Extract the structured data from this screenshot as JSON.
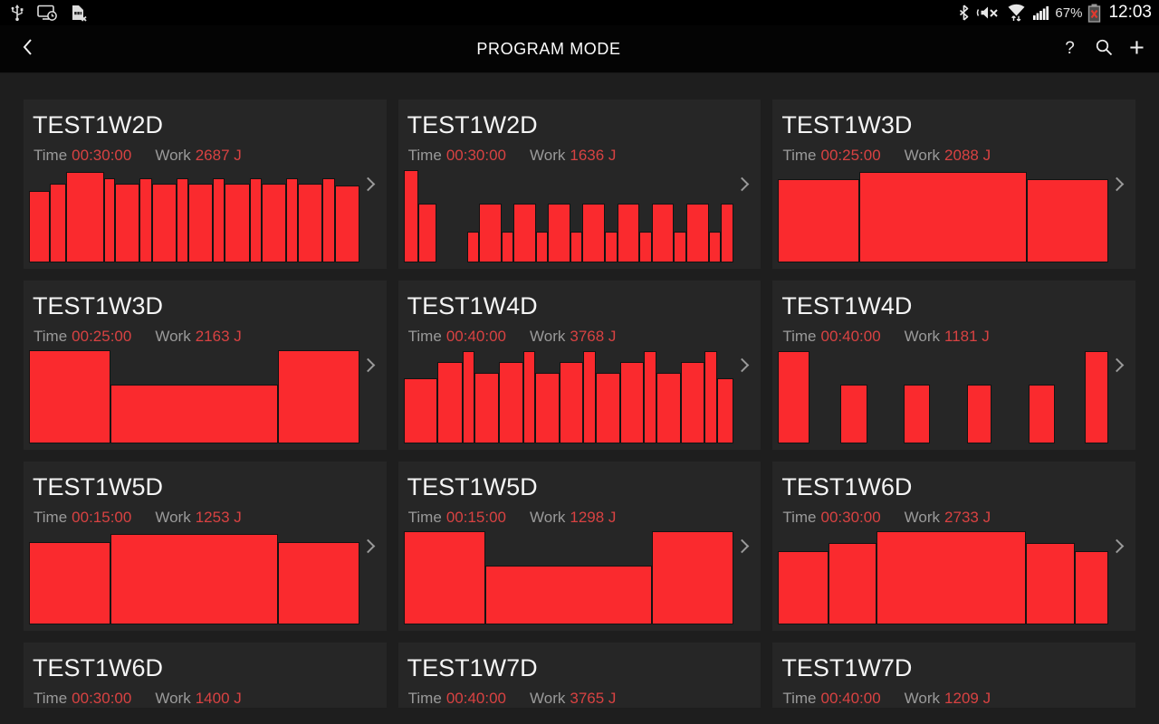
{
  "status_bar": {
    "left_icons": [
      "usb-icon",
      "smart-stay-icon",
      "sim-missing-icon"
    ],
    "right_icons": [
      "bluetooth-icon",
      "vibrate-mute-icon",
      "wifi-icon",
      "signal-strength-icon",
      "battery-missing-icon"
    ],
    "battery_percent": "67%",
    "time": "12:03"
  },
  "app_bar": {
    "title": "PROGRAM MODE",
    "back_icon": "back-chevron-icon",
    "help_label": "?",
    "search_icon": "search-icon",
    "add_label": "+"
  },
  "labels": {
    "time": "Time",
    "work": "Work"
  },
  "colors": {
    "page_bg": "#1e1e1e",
    "card_bg": "#262626",
    "bar_red": "#fa2a2e",
    "value_red": "#d84242",
    "label_gray": "#9a9a9a"
  },
  "programs": [
    {
      "name": "TEST1W2D",
      "time": "00:30:00",
      "work": "2687 J",
      "clipped": false,
      "bars": [
        [
          1.6,
          0.77
        ],
        [
          1.2,
          0.84
        ],
        [
          3.0,
          0.97
        ],
        [
          0.8,
          0.9
        ],
        [
          1.9,
          0.84
        ],
        [
          0.85,
          0.9
        ],
        [
          1.9,
          0.84
        ],
        [
          0.85,
          0.9
        ],
        [
          1.9,
          0.84
        ],
        [
          0.85,
          0.9
        ],
        [
          1.9,
          0.84
        ],
        [
          0.85,
          0.9
        ],
        [
          1.9,
          0.84
        ],
        [
          0.85,
          0.9
        ],
        [
          1.9,
          0.84
        ],
        [
          0.85,
          0.9
        ],
        [
          1.9,
          0.83
        ]
      ]
    },
    {
      "name": "TEST1W2D",
      "time": "00:30:00",
      "work": "1636 J",
      "clipped": false,
      "bars": [
        [
          1.3,
          0.99
        ],
        [
          1.5,
          0.63
        ],
        [
          3,
          0
        ],
        [
          1,
          0.33
        ],
        [
          2,
          0.63
        ],
        [
          1,
          0.33
        ],
        [
          2,
          0.63
        ],
        [
          1,
          0.33
        ],
        [
          2,
          0.63
        ],
        [
          1,
          0.33
        ],
        [
          2,
          0.63
        ],
        [
          1,
          0.33
        ],
        [
          2,
          0.63
        ],
        [
          1,
          0.33
        ],
        [
          2,
          0.63
        ],
        [
          1,
          0.33
        ],
        [
          2,
          0.63
        ],
        [
          1,
          0.33
        ],
        [
          1.1,
          0.63
        ]
      ]
    },
    {
      "name": "TEST1W3D",
      "time": "00:25:00",
      "work": "2088 J",
      "clipped": false,
      "bars": [
        [
          4,
          0.89
        ],
        [
          8.3,
          0.97
        ],
        [
          4,
          0.89
        ]
      ]
    },
    {
      "name": "TEST1W3D",
      "time": "00:25:00",
      "work": "2163 J",
      "clipped": false,
      "bars": [
        [
          4,
          1.0
        ],
        [
          8.3,
          0.63
        ],
        [
          4,
          1.0
        ]
      ]
    },
    {
      "name": "TEST1W4D",
      "time": "00:40:00",
      "work": "3768 J",
      "clipped": false,
      "bars": [
        [
          2.9,
          0.7
        ],
        [
          2.1,
          0.87
        ],
        [
          0.95,
          0.99
        ],
        [
          2.05,
          0.76
        ],
        [
          2.0,
          0.87
        ],
        [
          0.95,
          0.99
        ],
        [
          2.05,
          0.76
        ],
        [
          2.0,
          0.87
        ],
        [
          0.95,
          0.99
        ],
        [
          2.05,
          0.76
        ],
        [
          2.0,
          0.87
        ],
        [
          0.95,
          0.99
        ],
        [
          2.05,
          0.76
        ],
        [
          2.0,
          0.87
        ],
        [
          0.95,
          0.99
        ],
        [
          1.35,
          0.7
        ]
      ]
    },
    {
      "name": "TEST1W4D",
      "time": "00:40:00",
      "work": "1181 J",
      "clipped": false,
      "bars": [
        [
          2.6,
          0.99
        ],
        [
          2.6,
          0
        ],
        [
          2.2,
          0.63
        ],
        [
          3.2,
          0
        ],
        [
          2.1,
          0.63
        ],
        [
          3.2,
          0
        ],
        [
          2.0,
          0.63
        ],
        [
          3.2,
          0
        ],
        [
          2.1,
          0.63
        ],
        [
          2.6,
          0
        ],
        [
          1.9,
          0.99
        ]
      ]
    },
    {
      "name": "TEST1W5D",
      "time": "00:15:00",
      "work": "1253 J",
      "clipped": false,
      "bars": [
        [
          4,
          0.88
        ],
        [
          8.3,
          0.97
        ],
        [
          4,
          0.88
        ]
      ]
    },
    {
      "name": "TEST1W5D",
      "time": "00:15:00",
      "work": "1298 J",
      "clipped": false,
      "bars": [
        [
          4,
          1.0
        ],
        [
          8.3,
          0.63
        ],
        [
          4,
          1.0
        ]
      ]
    },
    {
      "name": "TEST1W6D",
      "time": "00:30:00",
      "work": "2733 J",
      "clipped": false,
      "bars": [
        [
          1.5,
          0.79
        ],
        [
          1.45,
          0.87
        ],
        [
          4.6,
          1.0
        ],
        [
          1.45,
          0.87
        ],
        [
          1.0,
          0.79
        ]
      ]
    },
    {
      "name": "TEST1W6D",
      "time": "00:30:00",
      "work": "1400 J",
      "clipped": true,
      "bars": []
    },
    {
      "name": "TEST1W7D",
      "time": "00:40:00",
      "work": "3765 J",
      "clipped": true,
      "bars": []
    },
    {
      "name": "TEST1W7D",
      "time": "00:40:00",
      "work": "1209 J",
      "clipped": true,
      "bars": []
    }
  ]
}
